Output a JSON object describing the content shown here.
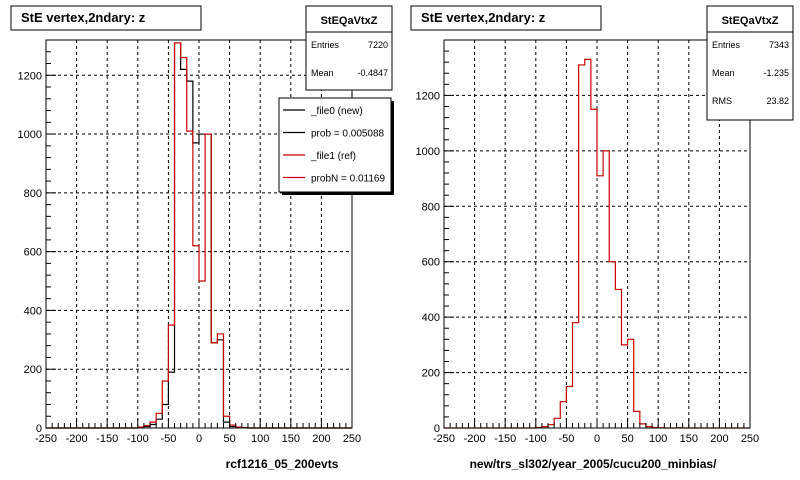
{
  "colors": {
    "new": "#000000",
    "ref": "#cc0000",
    "frame": "#000000",
    "background": "#ffffff"
  },
  "chart_data": [
    {
      "type": "histogram",
      "title": "StE  vertex,2ndary: z",
      "xlabel": "rcf1216_05_200evts",
      "xlim": [
        -250,
        250
      ],
      "ylim": [
        0,
        1320
      ],
      "xticks": [
        -250,
        -200,
        -150,
        -100,
        -50,
        0,
        50,
        100,
        150,
        200,
        250
      ],
      "yticks": [
        0,
        200,
        400,
        600,
        800,
        1000,
        1200
      ],
      "bin_edges": [
        -250,
        -240,
        -230,
        -220,
        -210,
        -200,
        -190,
        -180,
        -170,
        -160,
        -150,
        -140,
        -130,
        -120,
        -110,
        -100,
        -90,
        -80,
        -70,
        -60,
        -50,
        -40,
        -30,
        -20,
        -10,
        0,
        10,
        20,
        30,
        40,
        50,
        60,
        70,
        80,
        90,
        100,
        110,
        120,
        130,
        140,
        150,
        160,
        170,
        180,
        190,
        200,
        210,
        220,
        230,
        240,
        250
      ],
      "grid": true,
      "series": [
        {
          "name": "_file0 (new)",
          "color": "#000000",
          "values": [
            0,
            0,
            0,
            0,
            0,
            0,
            0,
            0,
            0,
            0,
            0,
            0,
            0,
            0,
            0,
            2,
            5,
            12,
            30,
            80,
            190,
            1310,
            1220,
            1180,
            970,
            1000,
            1000,
            290,
            300,
            20,
            5,
            2,
            1,
            0,
            0,
            0,
            0,
            0,
            0,
            0,
            0,
            0,
            0,
            0,
            0,
            0,
            0,
            0,
            0,
            0
          ]
        },
        {
          "name": "_file1 (ref)",
          "color": "#cc0000",
          "values": [
            0,
            0,
            0,
            0,
            0,
            0,
            0,
            0,
            0,
            0,
            0,
            0,
            0,
            0,
            0,
            3,
            8,
            20,
            50,
            160,
            350,
            1310,
            1260,
            1010,
            620,
            500,
            1000,
            290,
            320,
            40,
            10,
            3,
            1,
            0,
            0,
            0,
            0,
            0,
            0,
            0,
            0,
            0,
            0,
            0,
            0,
            0,
            0,
            0,
            0,
            0
          ]
        }
      ],
      "stats": {
        "name": "StEQaVtxZ",
        "rows": [
          {
            "label": "Entries",
            "value": "7220"
          },
          {
            "label": "Mean",
            "value": "-0.4847"
          }
        ]
      },
      "legend": {
        "placement": "top-right",
        "entries": [
          {
            "label": "_file0 (new)",
            "color": "#000000"
          },
          {
            "label": "prob = 0.005088",
            "color": "#000000"
          },
          {
            "label": "_file1 (ref)",
            "color": "#cc0000"
          },
          {
            "label": "probN = 0.01169",
            "color": "#cc0000"
          }
        ]
      }
    },
    {
      "type": "histogram",
      "title": "StE  vertex,2ndary: z",
      "xlabel": "new/trs_sl302/year_2005/cucu200_minbias/",
      "xlim": [
        -250,
        250
      ],
      "ylim": [
        0,
        1400
      ],
      "xticks": [
        -250,
        -200,
        -150,
        -100,
        -50,
        0,
        50,
        100,
        150,
        200,
        250
      ],
      "yticks": [
        0,
        200,
        400,
        600,
        800,
        1000,
        1200
      ],
      "bin_edges": [
        -250,
        -240,
        -230,
        -220,
        -210,
        -200,
        -190,
        -180,
        -170,
        -160,
        -150,
        -140,
        -130,
        -120,
        -110,
        -100,
        -90,
        -80,
        -70,
        -60,
        -50,
        -40,
        -30,
        -20,
        -10,
        0,
        10,
        20,
        30,
        40,
        50,
        60,
        70,
        80,
        90,
        100,
        110,
        120,
        130,
        140,
        150,
        160,
        170,
        180,
        190,
        200,
        210,
        220,
        230,
        240,
        250
      ],
      "grid": true,
      "series": [
        {
          "name": "",
          "color": "#cc0000",
          "values": [
            0,
            0,
            0,
            0,
            0,
            0,
            0,
            0,
            0,
            0,
            0,
            0,
            0,
            0,
            0,
            2,
            5,
            12,
            35,
            95,
            150,
            380,
            1310,
            1330,
            1150,
            910,
            1000,
            600,
            500,
            300,
            320,
            60,
            15,
            5,
            2,
            1,
            0,
            0,
            1,
            0,
            0,
            0,
            0,
            0,
            0,
            0,
            0,
            0,
            0,
            0
          ]
        }
      ],
      "stats": {
        "name": "StEQaVtxZ",
        "rows": [
          {
            "label": "Entries",
            "value": "7343"
          },
          {
            "label": "Mean",
            "value": "-1.235"
          },
          {
            "label": "RMS",
            "value": "23.82"
          }
        ]
      }
    }
  ]
}
